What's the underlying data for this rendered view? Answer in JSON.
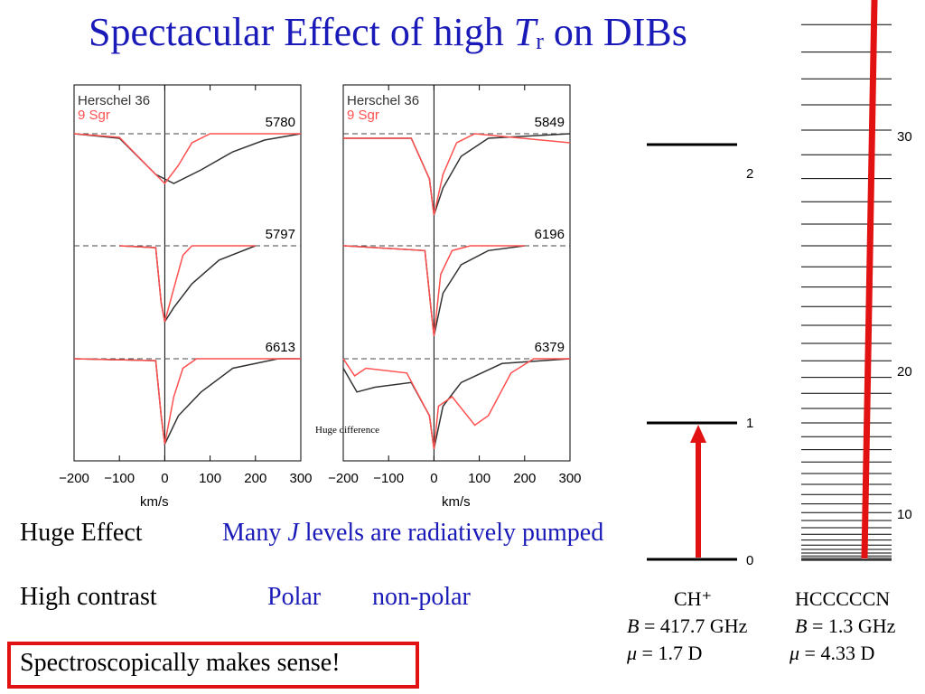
{
  "title": {
    "text1": "Spectacular Effect of high ",
    "var": "T",
    "sub": "r",
    "text2": " on DIBs"
  },
  "colors": {
    "title_blue": "#1a1ab8",
    "red": "#e31212",
    "curve_red": "#ff5050",
    "curve_dark": "#333333"
  },
  "chart_data": [
    {
      "type": "line",
      "panel": "left",
      "legend": [
        "Herschel 36",
        "9 Sgr"
      ],
      "xlabel": "km/s",
      "xticks": [
        -200,
        -100,
        0,
        100,
        200,
        300
      ],
      "xlim": [
        -200,
        300
      ],
      "series": [
        {
          "name": "5780",
          "herschel36": [
            [
              -200,
              1
            ],
            [
              -100,
              0.95
            ],
            [
              -20,
              0.55
            ],
            [
              20,
              0.45
            ],
            [
              80,
              0.6
            ],
            [
              150,
              0.8
            ],
            [
              220,
              0.93
            ],
            [
              300,
              1
            ]
          ],
          "sgr9": [
            [
              -200,
              1
            ],
            [
              -100,
              0.96
            ],
            [
              -30,
              0.6
            ],
            [
              0,
              0.45
            ],
            [
              30,
              0.65
            ],
            [
              60,
              0.9
            ],
            [
              100,
              1
            ],
            [
              300,
              1
            ]
          ]
        },
        {
          "name": "5797",
          "herschel36": [
            [
              -100,
              1
            ],
            [
              -20,
              0.98
            ],
            [
              -8,
              0.4
            ],
            [
              0,
              0.2
            ],
            [
              20,
              0.35
            ],
            [
              60,
              0.6
            ],
            [
              120,
              0.85
            ],
            [
              200,
              1
            ]
          ],
          "sgr9": [
            [
              -100,
              1
            ],
            [
              -20,
              0.98
            ],
            [
              -8,
              0.4
            ],
            [
              0,
              0.2
            ],
            [
              20,
              0.55
            ],
            [
              40,
              0.9
            ],
            [
              60,
              1
            ],
            [
              200,
              1
            ]
          ]
        },
        {
          "name": "6613",
          "herschel36": [
            [
              -200,
              1
            ],
            [
              -20,
              0.98
            ],
            [
              -8,
              0.4
            ],
            [
              0,
              0.1
            ],
            [
              30,
              0.4
            ],
            [
              80,
              0.65
            ],
            [
              150,
              0.9
            ],
            [
              250,
              1
            ],
            [
              300,
              1
            ]
          ],
          "sgr9": [
            [
              -200,
              1
            ],
            [
              -20,
              0.98
            ],
            [
              -8,
              0.4
            ],
            [
              0,
              0.1
            ],
            [
              20,
              0.6
            ],
            [
              40,
              0.9
            ],
            [
              70,
              1
            ],
            [
              300,
              1
            ]
          ]
        }
      ]
    },
    {
      "type": "line",
      "panel": "right",
      "legend": [
        "Herschel 36",
        "9 Sgr"
      ],
      "xlabel": "km/s",
      "xticks": [
        -200,
        -100,
        0,
        100,
        200,
        300
      ],
      "xlim": [
        -200,
        300
      ],
      "annotation": "Huge difference",
      "series": [
        {
          "name": "5849",
          "herschel36": [
            [
              -200,
              0.95
            ],
            [
              -50,
              0.95
            ],
            [
              -10,
              0.5
            ],
            [
              0,
              0.1
            ],
            [
              20,
              0.4
            ],
            [
              60,
              0.75
            ],
            [
              120,
              0.95
            ],
            [
              300,
              1
            ]
          ],
          "sgr9": [
            [
              -200,
              0.95
            ],
            [
              -50,
              0.95
            ],
            [
              -10,
              0.5
            ],
            [
              0,
              0.1
            ],
            [
              20,
              0.55
            ],
            [
              50,
              0.9
            ],
            [
              90,
              1
            ],
            [
              300,
              0.9
            ]
          ]
        },
        {
          "name": "6196",
          "herschel36": [
            [
              -200,
              1
            ],
            [
              -20,
              0.95
            ],
            [
              -8,
              0.4
            ],
            [
              0,
              0.05
            ],
            [
              20,
              0.5
            ],
            [
              60,
              0.8
            ],
            [
              120,
              0.95
            ],
            [
              200,
              1
            ]
          ],
          "sgr9": [
            [
              -200,
              1
            ],
            [
              -20,
              0.95
            ],
            [
              -8,
              0.4
            ],
            [
              0,
              0.05
            ],
            [
              15,
              0.7
            ],
            [
              40,
              0.95
            ],
            [
              80,
              1
            ],
            [
              200,
              1
            ]
          ]
        },
        {
          "name": "6379",
          "herschel36": [
            [
              -200,
              0.9
            ],
            [
              -170,
              0.65
            ],
            [
              -130,
              0.7
            ],
            [
              -50,
              0.75
            ],
            [
              -10,
              0.4
            ],
            [
              0,
              0.05
            ],
            [
              20,
              0.5
            ],
            [
              60,
              0.75
            ],
            [
              150,
              0.95
            ],
            [
              300,
              1
            ]
          ],
          "sgr9": [
            [
              -200,
              1
            ],
            [
              -175,
              0.82
            ],
            [
              -150,
              0.9
            ],
            [
              -60,
              0.85
            ],
            [
              -10,
              0.4
            ],
            [
              0,
              0.05
            ],
            [
              10,
              0.5
            ],
            [
              40,
              0.6
            ],
            [
              90,
              0.3
            ],
            [
              120,
              0.4
            ],
            [
              170,
              0.85
            ],
            [
              220,
              1
            ],
            [
              300,
              1
            ]
          ]
        }
      ]
    },
    {
      "type": "line",
      "label": "CH+ energy levels",
      "levels": [
        "2",
        "1",
        "0"
      ],
      "molecule": "CH⁺",
      "B": "= 417.7 GHz",
      "mu": "= 1.7 D"
    },
    {
      "type": "line",
      "label": "HCCCCCN energy levels",
      "level_labels": [
        "30",
        "20",
        "10"
      ],
      "molecule": "HCCCCCN",
      "B": "= 1.3 GHz",
      "mu": "= 4.33 D"
    }
  ],
  "text": {
    "huge_effect": "Huge Effect",
    "many_j_1": "Many ",
    "many_j_var": "J",
    "many_j_2": " levels are radiatively pumped",
    "high_contrast": "High contrast",
    "polar": "Polar",
    "non_polar": "non-polar",
    "spectro": "Spectroscopically makes sense!",
    "B_var": "B",
    "mu_var": "μ"
  }
}
